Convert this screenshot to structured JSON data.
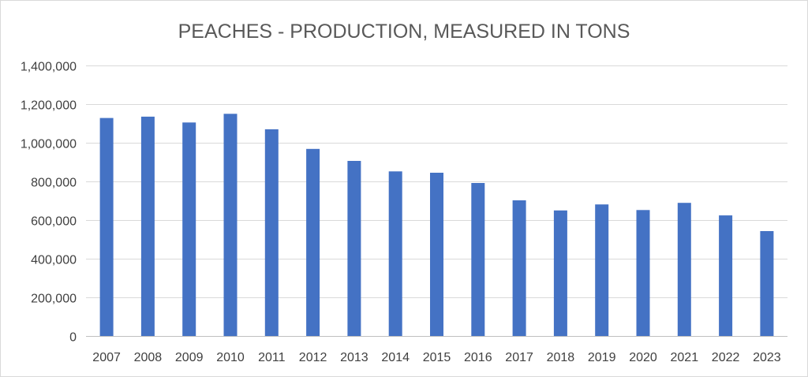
{
  "chart_data": {
    "type": "bar",
    "title": "PEACHES - PRODUCTION, MEASURED IN TONS",
    "xlabel": "",
    "ylabel": "",
    "categories": [
      "2007",
      "2008",
      "2009",
      "2010",
      "2011",
      "2012",
      "2013",
      "2014",
      "2015",
      "2016",
      "2017",
      "2018",
      "2019",
      "2020",
      "2021",
      "2022",
      "2023"
    ],
    "values": [
      1128000,
      1135000,
      1105000,
      1150000,
      1070000,
      968000,
      906000,
      852000,
      845000,
      792000,
      702000,
      650000,
      681000,
      652000,
      689000,
      624000,
      543000
    ],
    "ylim": [
      0,
      1400000
    ],
    "yticks": [
      0,
      200000,
      400000,
      600000,
      800000,
      1000000,
      1200000,
      1400000
    ],
    "ytick_labels": [
      "0",
      "200,000",
      "400,000",
      "600,000",
      "800,000",
      "1,000,000",
      "1,200,000",
      "1,400,000"
    ],
    "grid": true,
    "legend": "none",
    "colors": {
      "bar": "#4472C4"
    }
  }
}
